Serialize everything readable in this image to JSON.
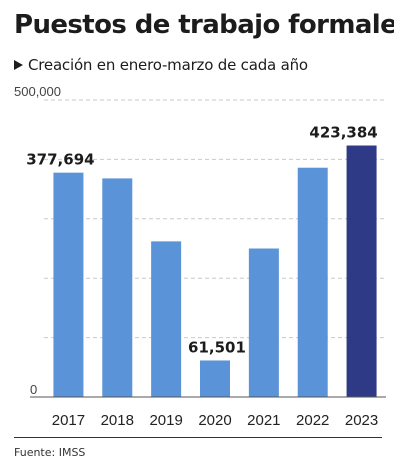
{
  "header": {
    "title": "Puestos de trabajo formales",
    "subtitle": "Creación en enero-marzo de cada año"
  },
  "footer": {
    "source": "Fuente: IMSS"
  },
  "chart_data": {
    "type": "bar",
    "categories": [
      "2017",
      "2018",
      "2019",
      "2020",
      "2021",
      "2022",
      "2023"
    ],
    "values": [
      377694,
      368000,
      262000,
      61501,
      250000,
      386000,
      423384
    ],
    "data_labels": [
      "377,694",
      "",
      "",
      "61,501",
      "",
      "",
      "423,384"
    ],
    "ylim": [
      0,
      500000
    ],
    "y_tick_labels": [
      {
        "value": 0,
        "label": "0"
      },
      {
        "value": 500000,
        "label": "500,000"
      }
    ],
    "grid": true,
    "colors": {
      "bar": "#5b93d8",
      "highlight": "#2e3a86",
      "grid": "#c9c9c9",
      "axis": "#555555"
    },
    "highlight_index": 6
  }
}
